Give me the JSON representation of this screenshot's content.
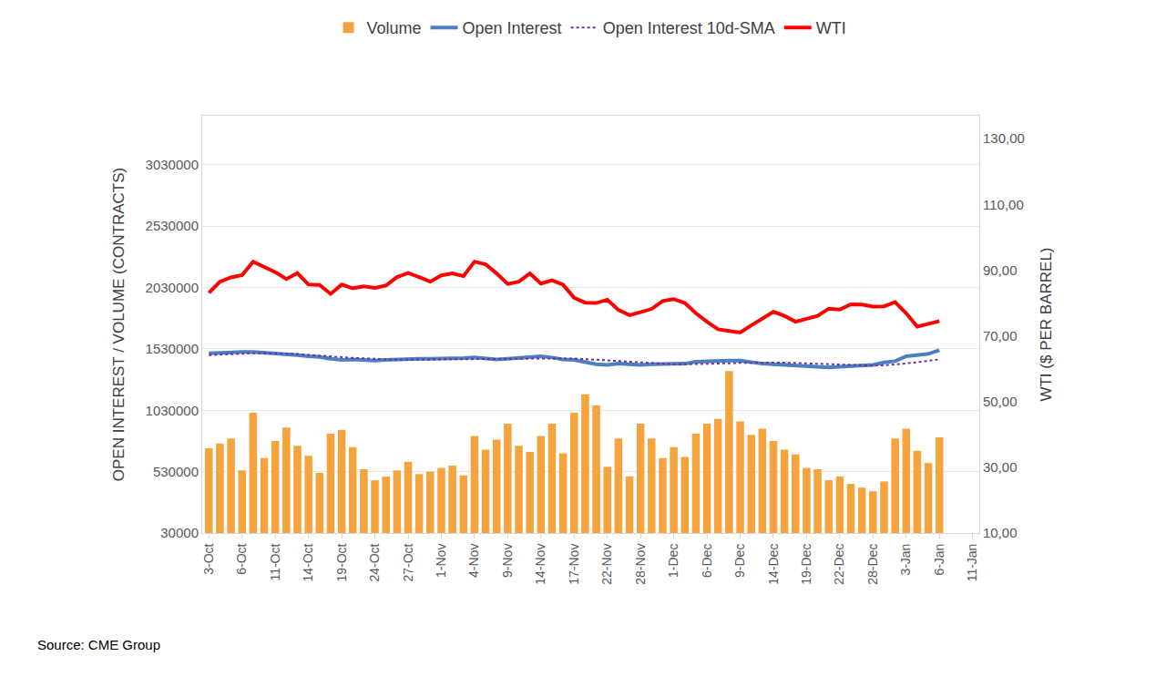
{
  "chart_data": {
    "type": "bar",
    "categories": [
      "3-Oct",
      null,
      null,
      "6-Oct",
      null,
      null,
      "11-Oct",
      null,
      null,
      "14-Oct",
      null,
      null,
      "19-Oct",
      null,
      null,
      "24-Oct",
      null,
      null,
      "27-Oct",
      null,
      null,
      "1-Nov",
      null,
      null,
      "4-Nov",
      null,
      null,
      "9-Nov",
      null,
      null,
      "14-Nov",
      null,
      null,
      "17-Nov",
      null,
      null,
      "22-Nov",
      null,
      null,
      "28-Nov",
      null,
      null,
      "1-Dec",
      null,
      null,
      "6-Dec",
      null,
      null,
      "9-Dec",
      null,
      null,
      "14-Dec",
      null,
      null,
      "19-Dec",
      null,
      null,
      "22-Dec",
      null,
      null,
      "28-Dec",
      null,
      null,
      "3-Jan",
      null,
      null,
      "6-Jan",
      null,
      null,
      "11-Jan"
    ],
    "series": [
      {
        "name": "Volume",
        "type": "bar",
        "color": "#f5a33c",
        "values": [
          720000,
          760000,
          800000,
          540000,
          1010000,
          640000,
          780000,
          890000,
          740000,
          660000,
          520000,
          840000,
          870000,
          730000,
          550000,
          460000,
          490000,
          540000,
          610000,
          510000,
          530000,
          560000,
          580000,
          500000,
          820000,
          710000,
          790000,
          920000,
          740000,
          690000,
          820000,
          920000,
          680000,
          1010000,
          1160000,
          1070000,
          570000,
          800000,
          490000,
          920000,
          800000,
          640000,
          730000,
          650000,
          840000,
          920000,
          960000,
          1350000,
          940000,
          830000,
          880000,
          780000,
          710000,
          670000,
          560000,
          550000,
          460000,
          490000,
          430000,
          400000,
          370000,
          450000,
          800000,
          880000,
          700000,
          600000,
          810000,
          null,
          null,
          null
        ]
      },
      {
        "name": "Open Interest",
        "type": "line",
        "color": "#4a7fc1",
        "line_style": "solid",
        "values": [
          1495000,
          1500000,
          1505000,
          1505000,
          1505000,
          1500000,
          1495000,
          1490000,
          1480000,
          1470000,
          1465000,
          1450000,
          1440000,
          1445000,
          1440000,
          1435000,
          1440000,
          1445000,
          1450000,
          1450000,
          1450000,
          1450000,
          1450000,
          1455000,
          1460000,
          1450000,
          1445000,
          1450000,
          1455000,
          1460000,
          1470000,
          1460000,
          1445000,
          1440000,
          1420000,
          1405000,
          1400000,
          1410000,
          1405000,
          1400000,
          1405000,
          1405000,
          1405000,
          1410000,
          1425000,
          1430000,
          1430000,
          1435000,
          1435000,
          1420000,
          1410000,
          1405000,
          1400000,
          1395000,
          1395000,
          1390000,
          1380000,
          1385000,
          1390000,
          1395000,
          1400000,
          1420000,
          1430000,
          1470000,
          1480000,
          1490000,
          1520000,
          null,
          null,
          null
        ]
      },
      {
        "name": "Open Interest 10d-SMA",
        "type": "line",
        "color": "#7030a0",
        "line_style": "dot",
        "values": [
          1480000,
          1485000,
          1490000,
          1495000,
          1495000,
          1495000,
          1495000,
          1492000,
          1488000,
          1483000,
          1477000,
          1470000,
          1463000,
          1457000,
          1452000,
          1448000,
          1445000,
          1443000,
          1442000,
          1442000,
          1443000,
          1445000,
          1446000,
          1448000,
          1450000,
          1451000,
          1451000,
          1452000,
          1452000,
          1453000,
          1455000,
          1455000,
          1453000,
          1451000,
          1448000,
          1443000,
          1437000,
          1431000,
          1425000,
          1419000,
          1413000,
          1408000,
          1405000,
          1405000,
          1406000,
          1408000,
          1410000,
          1413000,
          1416000,
          1418000,
          1419000,
          1419000,
          1418000,
          1415000,
          1412000,
          1408000,
          1403000,
          1398000,
          1395000,
          1393000,
          1394000,
          1397000,
          1402000,
          1412000,
          1422000,
          1433000,
          1445000,
          null,
          null,
          null
        ]
      },
      {
        "name": "WTI",
        "type": "line",
        "axis": "y2",
        "color": "#ff0000",
        "line_style": "solid",
        "values": [
          83.1,
          86.5,
          87.8,
          88.5,
          92.6,
          91.1,
          89.4,
          87.3,
          89.1,
          85.6,
          85.5,
          82.8,
          85.6,
          84.5,
          85.1,
          84.6,
          85.3,
          87.9,
          89.1,
          87.9,
          86.5,
          88.4,
          89.0,
          88.2,
          92.6,
          91.8,
          89.0,
          85.8,
          86.5,
          89.0,
          85.9,
          86.9,
          85.6,
          81.6,
          80.1,
          80.0,
          81.0,
          77.9,
          76.3,
          77.2,
          78.2,
          80.6,
          81.2,
          80.0,
          76.9,
          74.3,
          72.0,
          71.5,
          71.0,
          73.2,
          75.4,
          77.3,
          76.1,
          74.3,
          75.2,
          76.1,
          78.3,
          78.0,
          79.6,
          79.5,
          78.9,
          79.0,
          80.3,
          76.9,
          72.8,
          73.7,
          74.5,
          null,
          null,
          null
        ]
      }
    ],
    "ylabel": "OPEN INTEREST / VOLUME (CONTRACTS)",
    "y2label": "WTI ($ PER BARREL)",
    "ylim": [
      30000,
      3430000
    ],
    "yticks": [
      30000,
      530000,
      1030000,
      1530000,
      2030000,
      2530000,
      3030000
    ],
    "y2lim": [
      10,
      137
    ],
    "y2ticks": [
      {
        "value": 10,
        "label": "10,00"
      },
      {
        "value": 30,
        "label": "30,00"
      },
      {
        "value": 50,
        "label": "50,00"
      },
      {
        "value": 70,
        "label": "70,00"
      },
      {
        "value": 90,
        "label": "90,00"
      },
      {
        "value": 110,
        "label": "110,00"
      },
      {
        "value": 130,
        "label": "130,00"
      }
    ],
    "annotations": [
      "Source: CME Group"
    ],
    "grid": true,
    "legend": "top"
  }
}
